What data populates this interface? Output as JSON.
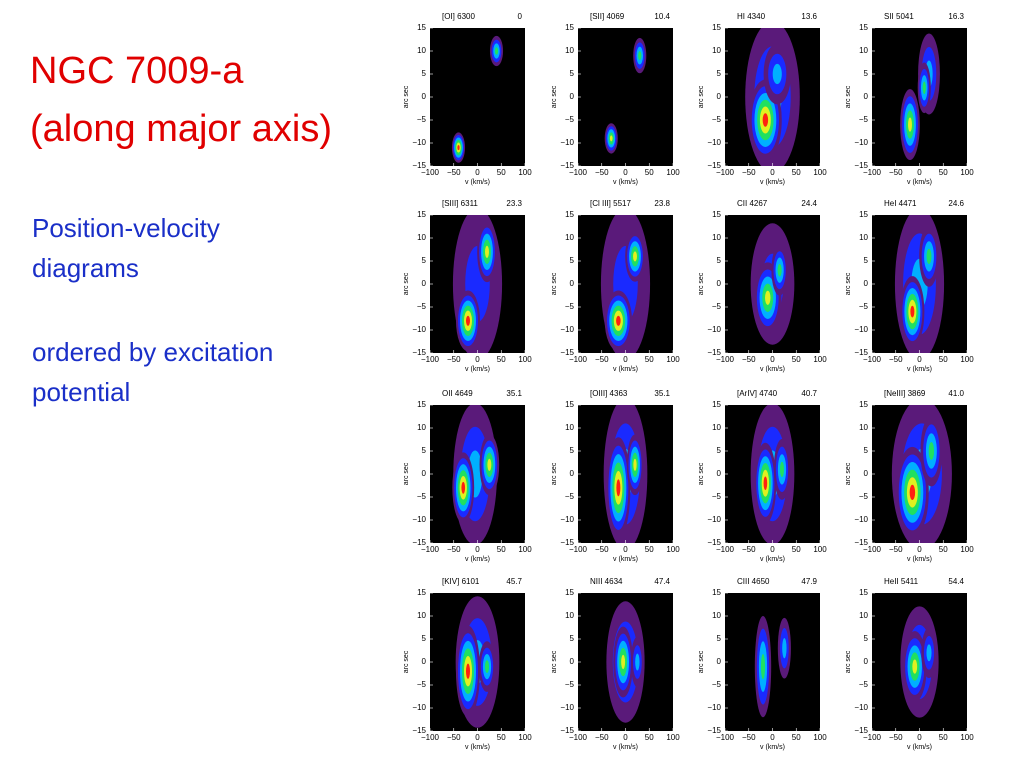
{
  "title": [
    "NGC 7009-a",
    "(along major axis)"
  ],
  "description": [
    "Position-velocity",
    "diagrams"
  ],
  "note": [
    "ordered by excitation",
    "potential"
  ],
  "axes": {
    "x_label": "v (km/s)",
    "y_label": "arc sec",
    "x_ticks": [
      "−100",
      "−50",
      "0",
      "50",
      "100"
    ],
    "y_ticks": [
      "15",
      "10",
      "5",
      "0",
      "−5",
      "−10",
      "−15"
    ]
  },
  "panels": [
    {
      "line": "[OI] 6300",
      "potential": "0"
    },
    {
      "line": "[SII] 4069",
      "potential": "10.4"
    },
    {
      "line": "HI 4340",
      "potential": "13.6"
    },
    {
      "line": "SII 5041",
      "potential": "16.3"
    },
    {
      "line": "[SIII] 6311",
      "potential": "23.3"
    },
    {
      "line": "[Cl III] 5517",
      "potential": "23.8"
    },
    {
      "line": "CII 4267",
      "potential": "24.4"
    },
    {
      "line": "HeI 4471",
      "potential": "24.6"
    },
    {
      "line": "OII 4649",
      "potential": "35.1"
    },
    {
      "line": "[OIII] 4363",
      "potential": "35.1"
    },
    {
      "line": "[ArIV] 4740",
      "potential": "40.7"
    },
    {
      "line": "[NeIII] 3869",
      "potential": "41.0"
    },
    {
      "line": "[KIV] 6101",
      "potential": "45.7"
    },
    {
      "line": "NIII 4634",
      "potential": "47.4"
    },
    {
      "line": "CIII 4650",
      "potential": "47.9"
    },
    {
      "line": "HeII 5411",
      "potential": "54.4"
    }
  ]
}
